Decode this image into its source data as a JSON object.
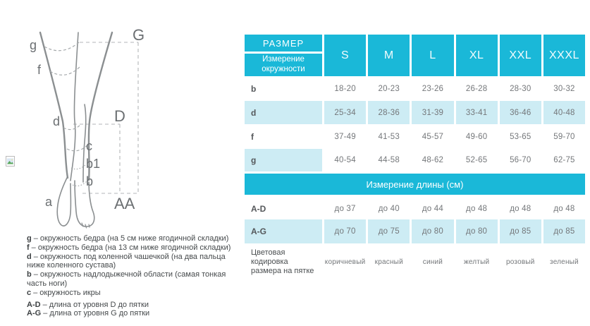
{
  "colors": {
    "teal": "#1ab8d8",
    "row_highlight": "#cdecf4"
  },
  "diagram": {
    "labels": {
      "g": "g",
      "f": "f",
      "d": "d",
      "c": "c",
      "b1": "b1",
      "b": "b",
      "a": "a",
      "G": "G",
      "D": "D",
      "AA": "AA"
    },
    "legend": [
      {
        "term": "g",
        "desc": "– окружность бедра (на 5 см ниже ягодичной складки)"
      },
      {
        "term": "f",
        "desc": "– окружность бедра (на 13 см ниже ягодичной складки)"
      },
      {
        "term": "d",
        "desc": "– окружность под коленной чашечкой (на два пальца ниже коленного сустава)"
      },
      {
        "term": "b",
        "desc": "– окружность надлодыжечной области (самая тонкая часть ноги)"
      },
      {
        "term": "c",
        "desc": "– окружность икры"
      },
      {
        "term": "A-D",
        "desc": "– длина от уровня D до пятки"
      },
      {
        "term": "A-G",
        "desc": "– длина от уровня G до пятки"
      }
    ]
  },
  "table": {
    "header": {
      "size_label": "РАЗМЕР",
      "measure_label": "Измерение окружности",
      "sizes": [
        "S",
        "M",
        "L",
        "XL",
        "XXL",
        "XXXL"
      ]
    },
    "circumference_rows": [
      {
        "label": "b",
        "values": [
          "18-20",
          "20-23",
          "23-26",
          "26-28",
          "28-30",
          "30-32"
        ],
        "highlight": "none"
      },
      {
        "label": "d",
        "values": [
          "25-34",
          "28-36",
          "31-39",
          "33-41",
          "36-46",
          "40-48"
        ],
        "highlight": "full"
      },
      {
        "label": "f",
        "values": [
          "37-49",
          "41-53",
          "45-57",
          "49-60",
          "53-65",
          "59-70"
        ],
        "highlight": "none"
      },
      {
        "label": "g",
        "values": [
          "40-54",
          "44-58",
          "48-62",
          "52-65",
          "56-70",
          "62-75"
        ],
        "highlight": "label"
      }
    ],
    "length_banner": "Измерение длины (см)",
    "length_rows": [
      {
        "label": "A-D",
        "values": [
          "до 37",
          "до 40",
          "до 44",
          "до 48",
          "до 48",
          "до 48"
        ],
        "highlight": "none"
      },
      {
        "label": "A-G",
        "values": [
          "до 70",
          "до 75",
          "до 80",
          "до 80",
          "до 85",
          "до 85"
        ],
        "highlight": "full"
      }
    ],
    "color_row": {
      "label": "Цветовая кодировка размера на пятке",
      "values": [
        "коричневый",
        "красный",
        "синий",
        "желтый",
        "розовый",
        "зеленый"
      ]
    }
  }
}
